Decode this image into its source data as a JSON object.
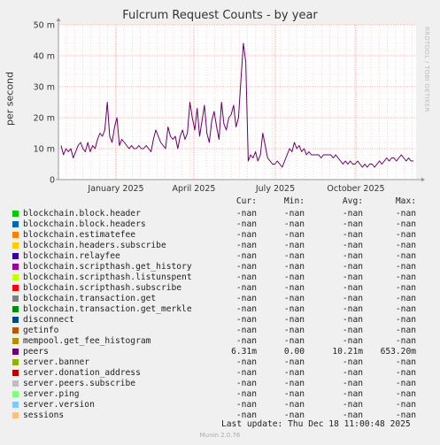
{
  "chart_data": {
    "type": "line",
    "title": "Fulcrum Request Counts - by year",
    "ylabel": "per second",
    "side_label": "RRDTOOL / TOBI OETIKER",
    "y_ticks": [
      {
        "value": 0,
        "label": "0"
      },
      {
        "value": 10,
        "label": "10 m"
      },
      {
        "value": 20,
        "label": "20 m"
      },
      {
        "value": 30,
        "label": "30 m"
      },
      {
        "value": 40,
        "label": "40 m"
      },
      {
        "value": 50,
        "label": "50 m"
      }
    ],
    "ylim": [
      0,
      50
    ],
    "x_ticks": [
      "January 2025",
      "April 2025",
      "July 2025",
      "October 2025"
    ],
    "grid": true,
    "series_color": "#660066",
    "series": [
      {
        "name": "peers",
        "points": [
          [
            0,
            11
          ],
          [
            1,
            8
          ],
          [
            2,
            10
          ],
          [
            3,
            9
          ],
          [
            4,
            10
          ],
          [
            5,
            7
          ],
          [
            6,
            9
          ],
          [
            7,
            11
          ],
          [
            8,
            12
          ],
          [
            9,
            10
          ],
          [
            10,
            9
          ],
          [
            11,
            12
          ],
          [
            12,
            9
          ],
          [
            13,
            11
          ],
          [
            14,
            10
          ],
          [
            15,
            13
          ],
          [
            16,
            15
          ],
          [
            17,
            14
          ],
          [
            18,
            16
          ],
          [
            19,
            25
          ],
          [
            20,
            14
          ],
          [
            21,
            12
          ],
          [
            22,
            17
          ],
          [
            23,
            20
          ],
          [
            24,
            11
          ],
          [
            25,
            13
          ],
          [
            26,
            12
          ],
          [
            27,
            11
          ],
          [
            28,
            10
          ],
          [
            29,
            11
          ],
          [
            30,
            10
          ],
          [
            31,
            10
          ],
          [
            32,
            11
          ],
          [
            33,
            10
          ],
          [
            34,
            10
          ],
          [
            35,
            11
          ],
          [
            36,
            10
          ],
          [
            37,
            9
          ],
          [
            38,
            13
          ],
          [
            39,
            16
          ],
          [
            40,
            14
          ],
          [
            41,
            12
          ],
          [
            42,
            11
          ],
          [
            43,
            10
          ],
          [
            44,
            17
          ],
          [
            45,
            14
          ],
          [
            46,
            13
          ],
          [
            47,
            14
          ],
          [
            48,
            10
          ],
          [
            49,
            14
          ],
          [
            50,
            16
          ],
          [
            51,
            13
          ],
          [
            52,
            15
          ],
          [
            53,
            25
          ],
          [
            54,
            20
          ],
          [
            55,
            16
          ],
          [
            56,
            23
          ],
          [
            57,
            14
          ],
          [
            58,
            19
          ],
          [
            59,
            24
          ],
          [
            60,
            15
          ],
          [
            61,
            12
          ],
          [
            62,
            19
          ],
          [
            63,
            22
          ],
          [
            64,
            17
          ],
          [
            65,
            13
          ],
          [
            66,
            25
          ],
          [
            67,
            18
          ],
          [
            68,
            16
          ],
          [
            69,
            20
          ],
          [
            70,
            21
          ],
          [
            71,
            24
          ],
          [
            72,
            17
          ],
          [
            73,
            20
          ],
          [
            74,
            32
          ],
          [
            75,
            44
          ],
          [
            76,
            38
          ],
          [
            77,
            6
          ],
          [
            78,
            8
          ],
          [
            79,
            7
          ],
          [
            80,
            9
          ],
          [
            81,
            6
          ],
          [
            82,
            8
          ],
          [
            83,
            15
          ],
          [
            84,
            11
          ],
          [
            85,
            7
          ],
          [
            86,
            6
          ],
          [
            87,
            5
          ],
          [
            88,
            5
          ],
          [
            89,
            6
          ],
          [
            90,
            5
          ],
          [
            91,
            4
          ],
          [
            92,
            6
          ],
          [
            93,
            8
          ],
          [
            94,
            10
          ],
          [
            95,
            9
          ],
          [
            96,
            12
          ],
          [
            97,
            10
          ],
          [
            98,
            11
          ],
          [
            99,
            9
          ],
          [
            100,
            10
          ],
          [
            101,
            8
          ],
          [
            102,
            9
          ],
          [
            103,
            8
          ],
          [
            104,
            8
          ],
          [
            105,
            8
          ],
          [
            106,
            8
          ],
          [
            107,
            7
          ],
          [
            108,
            8
          ],
          [
            109,
            8
          ],
          [
            110,
            8
          ],
          [
            111,
            8
          ],
          [
            112,
            7
          ],
          [
            113,
            8
          ],
          [
            114,
            7
          ],
          [
            115,
            6
          ],
          [
            116,
            5
          ],
          [
            117,
            6
          ],
          [
            118,
            5
          ],
          [
            119,
            6
          ],
          [
            120,
            5
          ],
          [
            121,
            5
          ],
          [
            122,
            6
          ],
          [
            123,
            5
          ],
          [
            124,
            4
          ],
          [
            125,
            5
          ],
          [
            126,
            4
          ],
          [
            127,
            5
          ],
          [
            128,
            5
          ],
          [
            129,
            4
          ],
          [
            130,
            5
          ],
          [
            131,
            6
          ],
          [
            132,
            5
          ],
          [
            133,
            6
          ],
          [
            134,
            7
          ],
          [
            135,
            6
          ],
          [
            136,
            7
          ],
          [
            137,
            7
          ],
          [
            138,
            6
          ],
          [
            139,
            7
          ],
          [
            140,
            8
          ],
          [
            141,
            7
          ],
          [
            142,
            6
          ],
          [
            143,
            7
          ],
          [
            144,
            6
          ],
          [
            145,
            6
          ]
        ]
      }
    ]
  },
  "legend": {
    "headers": {
      "cur": "Cur:",
      "min": "Min:",
      "avg": "Avg:",
      "max": "Max:"
    },
    "items": [
      {
        "name": "blockchain.block.header",
        "color": "#00cc00",
        "cur": "-nan",
        "min": "-nan",
        "avg": "-nan",
        "max": "-nan"
      },
      {
        "name": "blockchain.block.headers",
        "color": "#0066b3",
        "cur": "-nan",
        "min": "-nan",
        "avg": "-nan",
        "max": "-nan"
      },
      {
        "name": "blockchain.estimatefee",
        "color": "#ff8000",
        "cur": "-nan",
        "min": "-nan",
        "avg": "-nan",
        "max": "-nan"
      },
      {
        "name": "blockchain.headers.subscribe",
        "color": "#ffcc00",
        "cur": "-nan",
        "min": "-nan",
        "avg": "-nan",
        "max": "-nan"
      },
      {
        "name": "blockchain.relayfee",
        "color": "#330099",
        "cur": "-nan",
        "min": "-nan",
        "avg": "-nan",
        "max": "-nan"
      },
      {
        "name": "blockchain.scripthash.get_history",
        "color": "#990099",
        "cur": "-nan",
        "min": "-nan",
        "avg": "-nan",
        "max": "-nan"
      },
      {
        "name": "blockchain.scripthash.listunspent",
        "color": "#ccff00",
        "cur": "-nan",
        "min": "-nan",
        "avg": "-nan",
        "max": "-nan"
      },
      {
        "name": "blockchain.scripthash.subscribe",
        "color": "#ff0000",
        "cur": "-nan",
        "min": "-nan",
        "avg": "-nan",
        "max": "-nan"
      },
      {
        "name": "blockchain.transaction.get",
        "color": "#808080",
        "cur": "-nan",
        "min": "-nan",
        "avg": "-nan",
        "max": "-nan"
      },
      {
        "name": "blockchain.transaction.get_merkle",
        "color": "#008f00",
        "cur": "-nan",
        "min": "-nan",
        "avg": "-nan",
        "max": "-nan"
      },
      {
        "name": "disconnect",
        "color": "#00487d",
        "cur": "-nan",
        "min": "-nan",
        "avg": "-nan",
        "max": "-nan"
      },
      {
        "name": "getinfo",
        "color": "#b35a00",
        "cur": "-nan",
        "min": "-nan",
        "avg": "-nan",
        "max": "-nan"
      },
      {
        "name": "mempool.get_fee_histogram",
        "color": "#b38f00",
        "cur": "-nan",
        "min": "-nan",
        "avg": "-nan",
        "max": "-nan"
      },
      {
        "name": "peers",
        "color": "#6b006b",
        "cur": "6.31m",
        "min": "0.00",
        "avg": "10.21m",
        "max": "653.20m"
      },
      {
        "name": "server.banner",
        "color": "#8fb300",
        "cur": "-nan",
        "min": "-nan",
        "avg": "-nan",
        "max": "-nan"
      },
      {
        "name": "server.donation_address",
        "color": "#b30000",
        "cur": "-nan",
        "min": "-nan",
        "avg": "-nan",
        "max": "-nan"
      },
      {
        "name": "server.peers.subscribe",
        "color": "#bebebe",
        "cur": "-nan",
        "min": "-nan",
        "avg": "-nan",
        "max": "-nan"
      },
      {
        "name": "server.ping",
        "color": "#80ff80",
        "cur": "-nan",
        "min": "-nan",
        "avg": "-nan",
        "max": "-nan"
      },
      {
        "name": "server.version",
        "color": "#80c9ff",
        "cur": "-nan",
        "min": "-nan",
        "avg": "-nan",
        "max": "-nan"
      },
      {
        "name": "sessions",
        "color": "#ffc080",
        "cur": "-nan",
        "min": "-nan",
        "avg": "-nan",
        "max": "-nan"
      }
    ]
  },
  "footer": {
    "last_update": "Last update: Thu Dec 18 11:00:48 2025",
    "munin": "Munin 2.0.76"
  }
}
